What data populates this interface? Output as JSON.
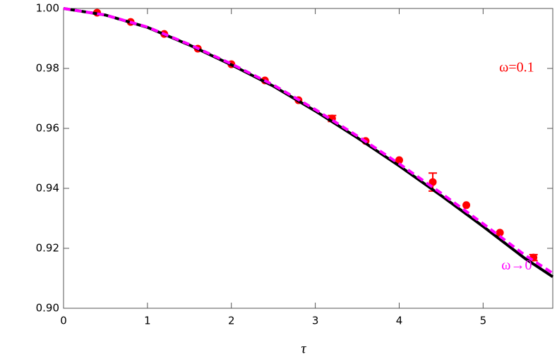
{
  "chart_data": {
    "type": "scatter-line",
    "xlabel": "τ",
    "xlim": [
      0,
      5.83
    ],
    "ylim": [
      0.9,
      1.0
    ],
    "xticks": [
      0,
      1,
      2,
      3,
      4,
      5
    ],
    "yticks": [
      {
        "value": 0.9,
        "label": "0.90"
      },
      0.92,
      0.94,
      0.96,
      0.98,
      {
        "value": 1.0,
        "label": "1.00"
      }
    ],
    "series": [
      {
        "kind": "points",
        "color": "#ff0000",
        "x": [
          0.4,
          0.8,
          1.2,
          1.6,
          2.0,
          2.4,
          2.8,
          3.2,
          3.6,
          4.0,
          4.4,
          4.8,
          5.2,
          5.6
        ],
        "values": [
          0.9986,
          0.9955,
          0.9915,
          0.9866,
          0.9814,
          0.976,
          0.9694,
          0.9633,
          0.9558,
          0.9494,
          0.9421,
          0.9344,
          0.9252,
          0.9169
        ],
        "errors": [
          null,
          null,
          null,
          null,
          null,
          null,
          null,
          0.001,
          null,
          null,
          0.003,
          null,
          null,
          0.001
        ]
      },
      {
        "kind": "solid",
        "color": "#000000",
        "x": [
          0,
          0.5,
          1,
          1.5,
          2,
          2.5,
          3,
          3.5,
          4,
          4.5,
          5,
          5.5,
          5.83
        ],
        "values": [
          1.0,
          0.9978,
          0.9937,
          0.9878,
          0.9812,
          0.9741,
          0.9658,
          0.9569,
          0.9475,
          0.9376,
          0.9273,
          0.9166,
          0.9105
        ]
      },
      {
        "kind": "dashed",
        "color": "#ff00ff",
        "x": [
          0,
          0.5,
          1,
          1.5,
          2,
          2.5,
          3,
          3.5,
          4,
          4.5,
          5,
          5.5,
          5.83
        ],
        "values": [
          1.0,
          0.9978,
          0.9938,
          0.988,
          0.9815,
          0.9745,
          0.9663,
          0.9575,
          0.9482,
          0.9384,
          0.9282,
          0.9177,
          0.9117
        ]
      }
    ],
    "annotations": [
      {
        "text": "ω=0.1",
        "color": "#ff0000",
        "x": 5.4,
        "y": 0.98
      },
      {
        "text": "ω→0",
        "color": "#ff00ff",
        "x": 5.4,
        "y": 0.914
      }
    ]
  }
}
